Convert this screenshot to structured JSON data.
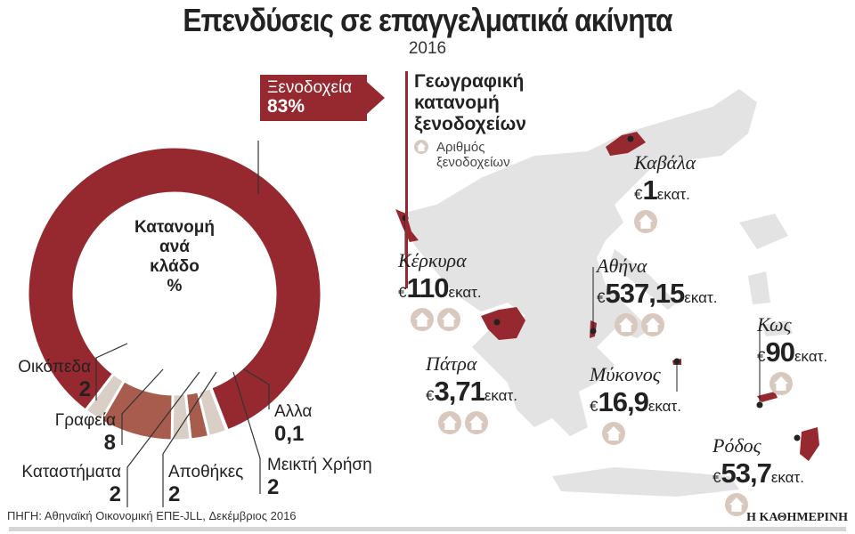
{
  "title": "Επενδύσεις σε επαγγελματικά ακίνητα",
  "year": "2016",
  "chart_data": {
    "type": "pie",
    "title": "Κατανομή ανά κλάδο %",
    "categories": [
      "Ξενοδοχεία",
      "Άλλα",
      "Μεικτή Χρήση",
      "Αποθήκες",
      "Καταστήματα",
      "Γραφεία",
      "Οικόπεδα"
    ],
    "values": [
      83,
      0.1,
      2,
      2,
      2,
      8,
      2
    ],
    "colors": [
      "#96292f",
      "#96292f",
      "#d9cfc6",
      "#a85c4e",
      "#d9cfc6",
      "#a85c4e",
      "#d9cfc6"
    ]
  },
  "donut": {
    "center_title": [
      "Κατανομή",
      "ανά",
      "κλάδο",
      "%"
    ],
    "callout": {
      "label": "Ξενοδοχεία",
      "value": "83%"
    },
    "labels": [
      {
        "name": "Οικόπεδα",
        "value": "2"
      },
      {
        "name": "Γραφεία",
        "value": "8"
      },
      {
        "name": "Καταστήματα",
        "value": "2"
      },
      {
        "name": "Αποθήκες",
        "value": "2"
      },
      {
        "name": "Μεικτή Χρήση",
        "value": "2"
      },
      {
        "name": "Αλλα",
        "value": "0,1"
      }
    ]
  },
  "map": {
    "title": [
      "Γεωγραφική",
      "κατανομή",
      "ξενοδοχείων"
    ],
    "legend": [
      "Αριθμός",
      "ξενοδοχείων"
    ],
    "cities": [
      {
        "name": "Καβάλα",
        "amount": "1",
        "unit": "εκατ.",
        "hotels": 1
      },
      {
        "name": "Κέρκυρα",
        "amount": "110",
        "unit": "εκατ.",
        "hotels": 2
      },
      {
        "name": "Αθήνα",
        "amount": "537,15",
        "unit": "εκατ.",
        "hotels": 2
      },
      {
        "name": "Πάτρα",
        "amount": "3,71",
        "unit": "εκατ.",
        "hotels": 2
      },
      {
        "name": "Μύκονος",
        "amount": "16,9",
        "unit": "εκατ.",
        "hotels": 1
      },
      {
        "name": "Κως",
        "amount": "90",
        "unit": "εκατ.",
        "hotels": 1
      },
      {
        "name": "Ρόδος",
        "amount": "53,7",
        "unit": "εκατ.",
        "hotels": 1
      }
    ],
    "currency": "€",
    "land_color": "#e3e3e3",
    "highlight_color": "#96292f"
  },
  "source": "ΠΗΓΗ: Αθηναϊκή Οικονομική ΕΠΕ-JLL, Δεκέμβριος 2016",
  "brand": "Η ΚΑΘΗΜΕΡΙΝΗ"
}
